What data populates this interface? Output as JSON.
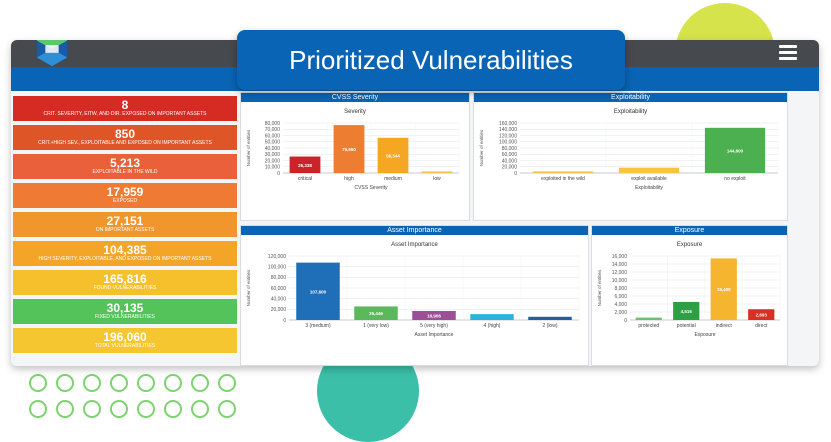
{
  "header": {
    "title": "Prioritized Vulnerabilities"
  },
  "colors": {
    "brand_blue": "#0a64b5",
    "topbar": "#46494e"
  },
  "tiles": [
    {
      "value": "8",
      "caption": "CRIT. SEVERITY, EITW, AND DIR. EXPOSED ON IMPORTANT ASSETS",
      "color": "#d62b22"
    },
    {
      "value": "850",
      "caption": "CRIT.+HIGH SEV., EXPLOITABLE AND EXPOSED ON IMPORTANT ASSETS",
      "color": "#de5628"
    },
    {
      "value": "5,213",
      "caption": "EXPLOITABLE IN THE WILD",
      "color": "#e9603a"
    },
    {
      "value": "17,959",
      "caption": "EXPOSED",
      "color": "#ee7a33"
    },
    {
      "value": "27,151",
      "caption": "ON IMPORTANT ASSETS",
      "color": "#f0962c"
    },
    {
      "value": "104,385",
      "caption": "HIGH SEVERITY, EXPLOITABLE, AND EXPOSED ON IMPORTANT ASSETS",
      "color": "#f3a528"
    },
    {
      "value": "165,816",
      "caption": "FOUND VULNERABILITIES",
      "color": "#f6c02d"
    },
    {
      "value": "30,135",
      "caption": "FIXED VULNERABILITIES",
      "color": "#54c45a"
    },
    {
      "value": "196,060",
      "caption": "TOTAL VULNERABILITIES",
      "color": "#f6c630"
    }
  ],
  "panels": {
    "cvss": {
      "header": "CVSS Severity",
      "subtitle": "Severity"
    },
    "exploitability": {
      "header": "Exploitability",
      "subtitle": "Exploitability"
    },
    "asset": {
      "header": "Asset Importance",
      "subtitle": "Asset Importance"
    },
    "exposure": {
      "header": "Exposure",
      "subtitle": "Exposure"
    }
  },
  "chart_data": [
    {
      "id": "cvss",
      "type": "bar",
      "categories": [
        "critical",
        "high",
        "medium",
        "low"
      ],
      "values": [
        26338,
        76650,
        56344,
        2500
      ],
      "data_labels": [
        "26,338",
        "76,650",
        "56,344",
        ""
      ],
      "colors": [
        "#cc2229",
        "#ed7d31",
        "#f5a623",
        "#f2c14e"
      ],
      "xlabel": "CVSS Severity",
      "ylabel": "Number of entities",
      "ylim": [
        0,
        80000
      ],
      "yticks": [
        "0",
        "10,000",
        "20,000",
        "30,000",
        "40,000",
        "50,000",
        "60,000",
        "70,000",
        "80,000"
      ],
      "grid": true
    },
    {
      "id": "exploitability",
      "type": "bar",
      "categories": [
        "exploited in the wild",
        "exploit available",
        "no exploit"
      ],
      "values": [
        5213,
        17000,
        144600
      ],
      "data_labels": [
        "",
        "",
        "144,600"
      ],
      "colors": [
        "#f5c542",
        "#f5c542",
        "#4caf50"
      ],
      "xlabel": "Exploitability",
      "ylabel": "Number of entities",
      "ylim": [
        0,
        160000
      ],
      "yticks": [
        "0",
        "20,000",
        "40,000",
        "60,000",
        "80,000",
        "100,000",
        "120,000",
        "140,000",
        "160,000"
      ],
      "grid": true
    },
    {
      "id": "asset",
      "type": "bar",
      "categories": [
        "3 (medium)",
        "1 (very low)",
        "5 (very high)",
        "4 (high)",
        "2 (low)"
      ],
      "values": [
        107600,
        25446,
        16906,
        11000,
        6000
      ],
      "data_labels": [
        "107,600",
        "25,446",
        "16,906",
        "",
        ""
      ],
      "colors": [
        "#1f6fb8",
        "#5cb85c",
        "#9b4f96",
        "#2bb5d8",
        "#1f5fa6"
      ],
      "xlabel": "Asset Importance",
      "ylabel": "Number of entities",
      "ylim": [
        0,
        120000
      ],
      "yticks": [
        "0",
        "20,000",
        "40,000",
        "60,000",
        "80,000",
        "100,000",
        "120,000"
      ],
      "grid": true
    },
    {
      "id": "exposure",
      "type": "bar",
      "categories": [
        "protected",
        "potential",
        "indirect",
        "direct"
      ],
      "values": [
        600,
        4516,
        15400,
        2693
      ],
      "data_labels": [
        "",
        "4,516",
        "15,400",
        "2,693"
      ],
      "colors": [
        "#6cc070",
        "#2ea043",
        "#f5b52e",
        "#d93025"
      ],
      "xlabel": "Exposure",
      "ylabel": "Number of entities",
      "ylim": [
        0,
        16000
      ],
      "yticks": [
        "0",
        "2,000",
        "4,000",
        "6,000",
        "8,000",
        "10,000",
        "12,000",
        "14,000",
        "16,000"
      ],
      "grid": true
    }
  ]
}
